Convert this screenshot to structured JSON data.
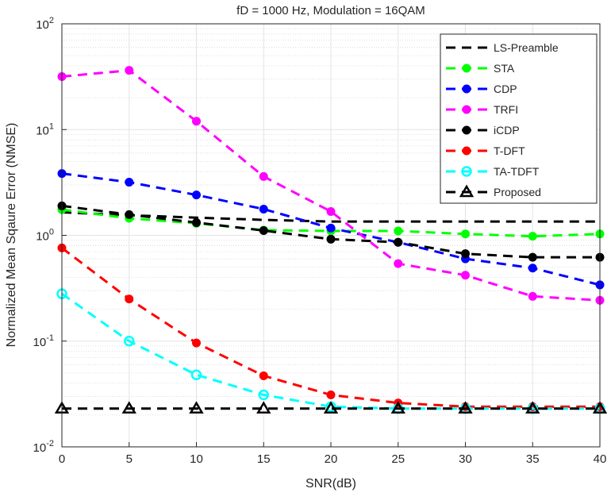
{
  "chart_data": {
    "type": "line",
    "title": "fD = 1000 Hz, Modulation = 16QAM",
    "xlabel": "SNR(dB)",
    "ylabel": "Normalized Mean Sqaure Error (NMSE)",
    "x": [
      0,
      5,
      10,
      15,
      20,
      25,
      30,
      35,
      40
    ],
    "xlim": [
      0,
      40
    ],
    "xticks": [
      "0",
      "5",
      "10",
      "15",
      "20",
      "25",
      "30",
      "35",
      "40"
    ],
    "ylim": [
      0.01,
      100
    ],
    "yscale": "log",
    "yticks": [
      {
        "base": "10",
        "exp": "-2"
      },
      {
        "base": "10",
        "exp": "-1"
      },
      {
        "base": "10",
        "exp": "0"
      },
      {
        "base": "10",
        "exp": "1"
      },
      {
        "base": "10",
        "exp": "2"
      }
    ],
    "grid": true,
    "legend_position": "top-right",
    "series": [
      {
        "name": "LS-Preamble",
        "color": "#000000",
        "marker": "none",
        "values": [
          1.65,
          1.55,
          1.47,
          1.4,
          1.35,
          1.35,
          1.35,
          1.35,
          1.35
        ]
      },
      {
        "name": "STA",
        "color": "#00ff00",
        "marker": "filled-circle",
        "values": [
          1.75,
          1.45,
          1.3,
          1.12,
          1.1,
          1.1,
          1.03,
          0.98,
          1.03
        ]
      },
      {
        "name": "CDP",
        "color": "#0000ff",
        "marker": "filled-circle",
        "values": [
          3.84,
          3.18,
          2.41,
          1.77,
          1.17,
          0.86,
          0.6,
          0.49,
          0.34
        ]
      },
      {
        "name": "TRFI",
        "color": "#ff00ff",
        "marker": "filled-circle",
        "values": [
          31.7,
          36.3,
          12.0,
          3.6,
          1.68,
          0.54,
          0.42,
          0.265,
          0.243
        ]
      },
      {
        "name": "iCDP",
        "color": "#000000",
        "marker": "filled-circle",
        "values": [
          1.9,
          1.57,
          1.32,
          1.11,
          0.92,
          0.86,
          0.67,
          0.62,
          0.62
        ]
      },
      {
        "name": "T-DFT",
        "color": "#ff0000",
        "marker": "filled-circle",
        "values": [
          0.76,
          0.25,
          0.096,
          0.047,
          0.031,
          0.026,
          0.024,
          0.024,
          0.024
        ]
      },
      {
        "name": "TA-TDFT",
        "color": "#00ffff",
        "marker": "open-circle",
        "values": [
          0.28,
          0.1,
          0.048,
          0.031,
          0.024,
          0.023,
          0.023,
          0.023,
          0.023
        ]
      },
      {
        "name": "Proposed",
        "color": "#000000",
        "marker": "open-triangle",
        "values": [
          0.023,
          0.023,
          0.023,
          0.023,
          0.023,
          0.023,
          0.023,
          0.023,
          0.023
        ]
      }
    ]
  }
}
